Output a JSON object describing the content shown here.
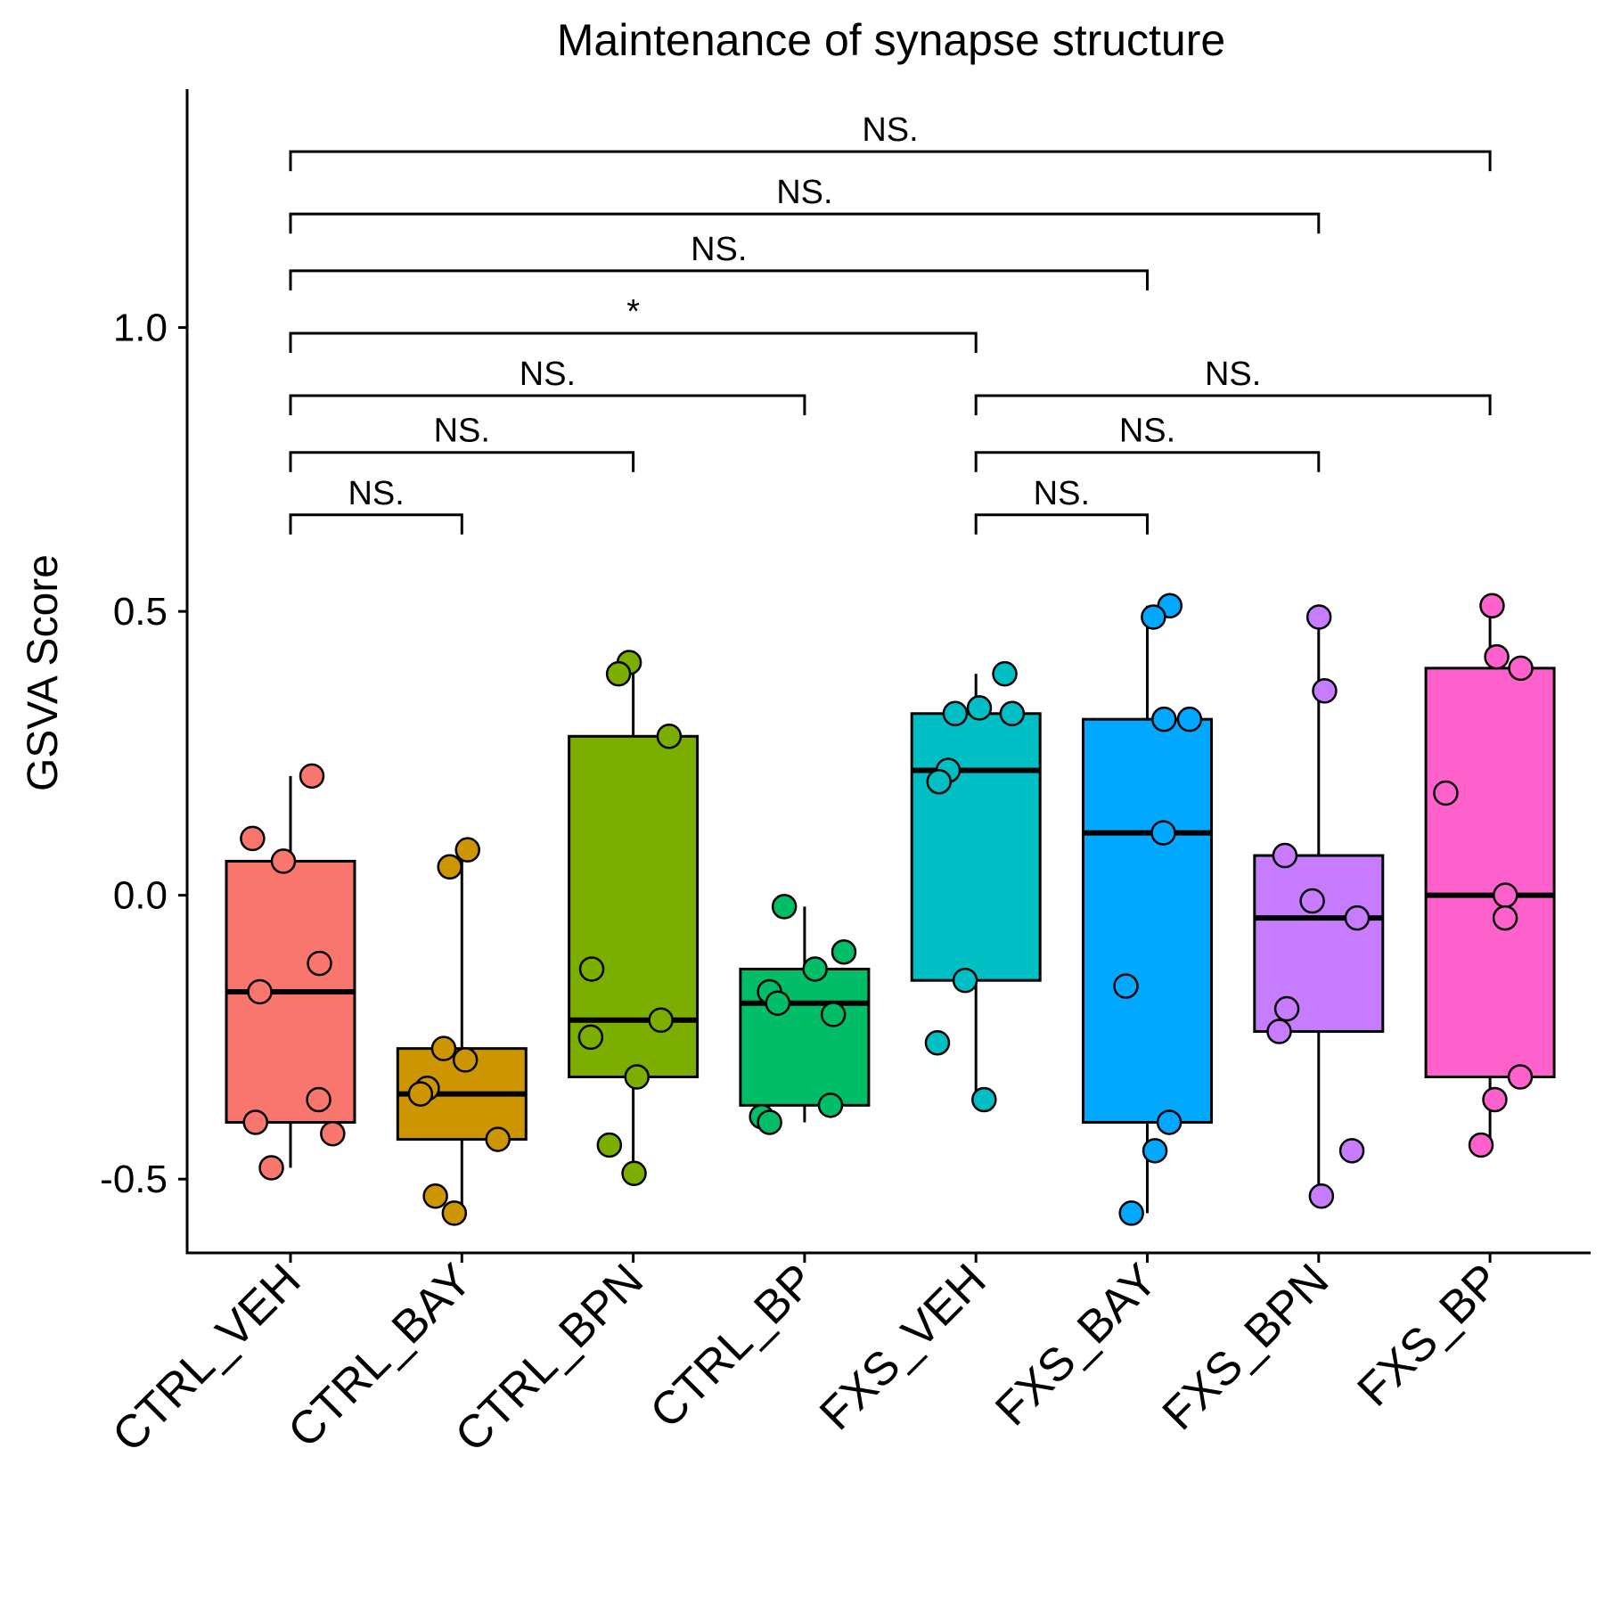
{
  "chart_data": {
    "type": "box",
    "title": "Maintenance of synapse structure",
    "xlabel": "",
    "ylabel": "GSVA Score",
    "ylim": [
      -0.63,
      1.42
    ],
    "yticks": [
      -0.5,
      0.0,
      0.5,
      1.0
    ],
    "ytick_labels": [
      "-0.5",
      "0.0",
      "0.5",
      "1.0"
    ],
    "grid": false,
    "legend": "none",
    "categories": [
      "CTRL_VEH",
      "CTRL_BAY",
      "CTRL_BPN",
      "CTRL_BP",
      "FXS_VEH",
      "FXS_BAY",
      "FXS_BPN",
      "FXS_BP"
    ],
    "colors": [
      "#F8766D",
      "#CD9600",
      "#7CAE00",
      "#00BE67",
      "#00BFC4",
      "#00A9FF",
      "#C77CFF",
      "#FF61CC"
    ],
    "boxes": [
      {
        "whisker_low": -0.48,
        "q1": -0.4,
        "median": -0.17,
        "q3": 0.06,
        "whisker_high": 0.21
      },
      {
        "whisker_low": -0.56,
        "q1": -0.43,
        "median": -0.35,
        "q3": -0.27,
        "whisker_high": 0.08
      },
      {
        "whisker_low": -0.49,
        "q1": -0.32,
        "median": -0.22,
        "q3": 0.28,
        "whisker_high": 0.41
      },
      {
        "whisker_low": -0.4,
        "q1": -0.37,
        "median": -0.19,
        "q3": -0.13,
        "whisker_high": -0.02
      },
      {
        "whisker_low": -0.36,
        "q1": -0.15,
        "median": 0.22,
        "q3": 0.32,
        "whisker_high": 0.39
      },
      {
        "whisker_low": -0.56,
        "q1": -0.4,
        "median": 0.11,
        "q3": 0.31,
        "whisker_high": 0.51
      },
      {
        "whisker_low": -0.53,
        "q1": -0.24,
        "median": -0.04,
        "q3": 0.07,
        "whisker_high": 0.49
      },
      {
        "whisker_low": -0.44,
        "q1": -0.32,
        "median": 0.0,
        "q3": 0.4,
        "whisker_high": 0.51
      }
    ],
    "points": [
      [
        0.21,
        0.1,
        0.06,
        -0.12,
        -0.17,
        -0.36,
        -0.4,
        -0.42,
        -0.48
      ],
      [
        0.08,
        0.05,
        -0.27,
        -0.29,
        -0.34,
        -0.35,
        -0.43,
        -0.53,
        -0.56
      ],
      [
        0.41,
        0.39,
        0.28,
        -0.13,
        -0.22,
        -0.25,
        -0.32,
        -0.44,
        -0.49
      ],
      [
        -0.02,
        -0.1,
        -0.13,
        -0.17,
        -0.19,
        -0.21,
        -0.37,
        -0.39,
        -0.4
      ],
      [
        0.39,
        0.33,
        0.32,
        0.32,
        0.22,
        0.2,
        -0.15,
        -0.26,
        -0.36
      ],
      [
        0.51,
        0.49,
        0.31,
        0.31,
        0.11,
        -0.16,
        -0.4,
        -0.45,
        -0.56
      ],
      [
        0.49,
        0.36,
        0.07,
        -0.01,
        -0.04,
        -0.2,
        -0.24,
        -0.45,
        -0.53
      ],
      [
        0.51,
        0.42,
        0.4,
        0.18,
        0.0,
        -0.04,
        -0.32,
        -0.36,
        -0.44
      ]
    ],
    "comparisons": [
      {
        "from": 0,
        "to": 1,
        "y": 0.67,
        "label": "NS."
      },
      {
        "from": 0,
        "to": 2,
        "y": 0.78,
        "label": "NS."
      },
      {
        "from": 0,
        "to": 3,
        "y": 0.88,
        "label": "NS."
      },
      {
        "from": 0,
        "to": 4,
        "y": 0.99,
        "label": "*"
      },
      {
        "from": 0,
        "to": 5,
        "y": 1.1,
        "label": "NS."
      },
      {
        "from": 0,
        "to": 6,
        "y": 1.2,
        "label": "NS."
      },
      {
        "from": 0,
        "to": 7,
        "y": 1.31,
        "label": "NS."
      },
      {
        "from": 4,
        "to": 5,
        "y": 0.67,
        "label": "NS."
      },
      {
        "from": 4,
        "to": 6,
        "y": 0.78,
        "label": "NS."
      },
      {
        "from": 4,
        "to": 7,
        "y": 0.88,
        "label": "NS."
      }
    ]
  }
}
